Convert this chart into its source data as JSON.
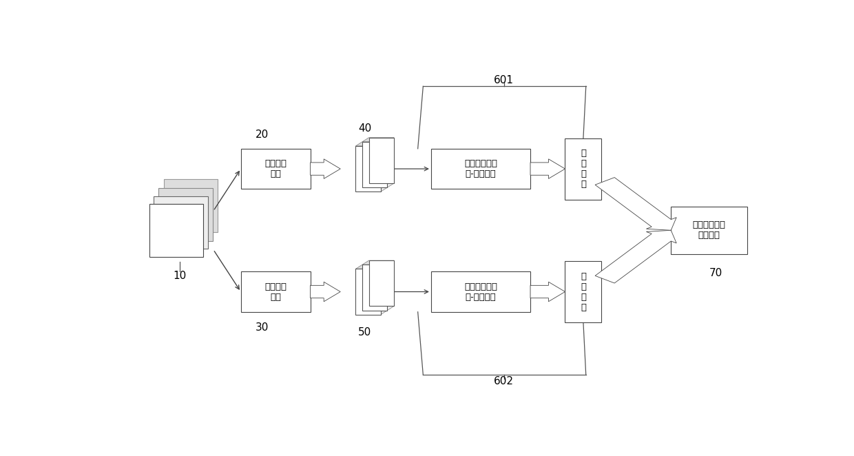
{
  "bg_color": "#ffffff",
  "fig_width": 12.4,
  "fig_height": 6.62,
  "dpi": 100,
  "labels": {
    "video_sample": "视频序列\n抽帧",
    "audio_sample": "音频序列\n抽帧",
    "lstm_norm_top": "长短期记忆网\n络-正则化层",
    "lstm_norm_bot": "长短期记忆网\n络-正则化层",
    "fc_top": "全\n连\n接\n层",
    "fc_bot": "全\n连\n接\n层",
    "fusion": "音视频特征决\n策层融合",
    "num_10": "10",
    "num_20": "20",
    "num_30": "30",
    "num_40": "40",
    "num_50": "50",
    "num_70": "70",
    "num_601": "601",
    "num_602": "602"
  }
}
